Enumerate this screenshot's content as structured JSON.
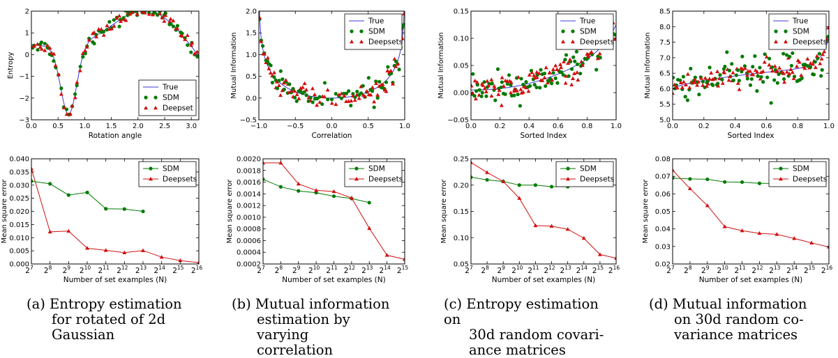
{
  "colors": {
    "true_line": "#3b3bd6",
    "sdm": "#007a00",
    "deepsets": "#d01010"
  },
  "chart_data": [
    {
      "type": "line",
      "id": "a_top",
      "xlabel": "Rotation angle",
      "ylabel": "Entropy",
      "xlim": [
        0,
        3.14159
      ],
      "ylim": [
        -3,
        2
      ],
      "xticks": [
        0,
        0.5,
        1,
        1.5,
        2,
        2.5,
        3
      ],
      "xticklabels": [
        "0.0",
        "0.5",
        "1.0",
        "1.5",
        "2.0",
        "2.5",
        "3.0"
      ],
      "yticks": [
        -3,
        -2,
        -1,
        0,
        1,
        2
      ],
      "yticklabels": [
        "−3",
        "−2",
        "−1",
        "0",
        "1",
        "2"
      ],
      "legend": {
        "position": "bottom-right",
        "entries": [
          "True",
          "SDM",
          "Deepset"
        ]
      },
      "true_fn": "entropy",
      "noise": 0.13,
      "n_points": 70
    },
    {
      "type": "line",
      "id": "b_top",
      "xlabel": "Correlation",
      "ylabel": "Mutual Information",
      "xlim": [
        -1,
        1
      ],
      "ylim": [
        -0.5,
        2.0
      ],
      "xticks": [
        -1,
        -0.5,
        0,
        0.5,
        1
      ],
      "xticklabels": [
        "−1.0",
        "−0.5",
        "0.0",
        "0.5",
        "1.0"
      ],
      "yticks": [
        -0.5,
        0,
        0.5,
        1,
        1.5,
        2
      ],
      "yticklabels": [
        "−0.5",
        "0.0",
        "0.5",
        "1.0",
        "1.5",
        "2.0"
      ],
      "legend": {
        "position": "top-right",
        "entries": [
          "True",
          "SDM",
          "Deepsets"
        ]
      },
      "true_fn": "mi_corr",
      "noise": 0.12,
      "n_points": 75
    },
    {
      "type": "line",
      "id": "c_top",
      "xlabel": "Sorted Index",
      "ylabel": "Mutual Information",
      "xlim": [
        0,
        1
      ],
      "ylim": [
        -0.05,
        0.15
      ],
      "xticks": [
        0,
        0.2,
        0.4,
        0.6,
        0.8,
        1
      ],
      "xticklabels": [
        "0.0",
        "0.2",
        "0.4",
        "0.6",
        "0.8",
        "1.0"
      ],
      "yticks": [
        -0.05,
        0,
        0.05,
        0.1,
        0.15
      ],
      "yticklabels": [
        "−0.05",
        "0.00",
        "0.05",
        "0.10",
        "0.15"
      ],
      "legend": {
        "position": "top-right",
        "entries": [
          "True",
          "SDM",
          "Deepsets"
        ]
      },
      "true_fn": "sorted_c",
      "noise": 0.013,
      "n_points": 90
    },
    {
      "type": "line",
      "id": "d_top",
      "xlabel": "Sorted Index",
      "ylabel": "Mutual Information",
      "xlim": [
        0,
        1
      ],
      "ylim": [
        5.0,
        8.5
      ],
      "xticks": [
        0,
        0.2,
        0.4,
        0.6,
        0.8,
        1
      ],
      "xticklabels": [
        "0.0",
        "0.2",
        "0.4",
        "0.6",
        "0.8",
        "1.0"
      ],
      "yticks": [
        5,
        5.5,
        6,
        6.5,
        7,
        7.5,
        8,
        8.5
      ],
      "yticklabels": [
        "5.0",
        "5.5",
        "6.0",
        "6.5",
        "7.0",
        "7.5",
        "8.0",
        "8.5"
      ],
      "legend": {
        "position": "top-right",
        "entries": [
          "True",
          "SDM",
          "Deepsets"
        ]
      },
      "true_fn": "sorted_d",
      "noise_sdm": 0.38,
      "noise_ds": 0.16,
      "n_points": 90
    },
    {
      "type": "line",
      "id": "a_bot",
      "xlabel": "Number of set examples (N)",
      "ylabel": "Mean square error",
      "x_exponents": [
        7,
        8,
        9,
        10,
        11,
        12,
        13,
        14,
        15,
        16
      ],
      "ylim": [
        0,
        0.04
      ],
      "yticks": [
        0,
        0.005,
        0.01,
        0.015,
        0.02,
        0.025,
        0.03,
        0.035,
        0.04
      ],
      "yticklabels": [
        "0.000",
        "0.005",
        "0.010",
        "0.015",
        "0.020",
        "0.025",
        "0.030",
        "0.035",
        "0.040"
      ],
      "legend": {
        "position": "top-right",
        "entries": [
          "SDM",
          "Deepsets"
        ]
      },
      "series": [
        {
          "name": "SDM",
          "x": [
            7,
            8,
            9,
            10,
            11,
            12,
            13
          ],
          "values": [
            0.0315,
            0.0305,
            0.0262,
            0.0272,
            0.021,
            0.0209,
            0.02
          ]
        },
        {
          "name": "Deepsets",
          "x": [
            7,
            8,
            9,
            10,
            11,
            12,
            13,
            14,
            15,
            16
          ],
          "values": [
            0.0362,
            0.0122,
            0.0125,
            0.006,
            0.0052,
            0.0043,
            0.0051,
            0.0026,
            0.0013,
            0.0005
          ]
        }
      ]
    },
    {
      "type": "line",
      "id": "b_bot",
      "xlabel": "Number of set examples (N)",
      "ylabel": "Mean square error",
      "x_exponents": [
        7,
        8,
        9,
        10,
        11,
        12,
        13,
        14,
        15
      ],
      "ylim": [
        0.0002,
        0.002
      ],
      "yticks": [
        0.0002,
        0.0004,
        0.0006,
        0.0008,
        0.001,
        0.0012,
        0.0014,
        0.0016,
        0.0018,
        0.002
      ],
      "yticklabels": [
        "0.0002",
        "0.0004",
        "0.0006",
        "0.0008",
        "0.0010",
        "0.0012",
        "0.0014",
        "0.0016",
        "0.0018",
        "0.0020"
      ],
      "legend": {
        "position": "top-right",
        "entries": [
          "SDM",
          "Deepsets"
        ]
      },
      "series": [
        {
          "name": "SDM",
          "x": [
            7,
            8,
            9,
            10,
            11,
            12,
            13
          ],
          "values": [
            0.00165,
            0.00152,
            0.00145,
            0.00142,
            0.00136,
            0.00132,
            0.00125
          ]
        },
        {
          "name": "Deepsets",
          "x": [
            7,
            8,
            9,
            10,
            11,
            12,
            13,
            14,
            15
          ],
          "values": [
            0.00193,
            0.00193,
            0.00157,
            0.00146,
            0.00144,
            0.00133,
            0.00081,
            0.00035,
            0.00028
          ]
        }
      ]
    },
    {
      "type": "line",
      "id": "c_bot",
      "xlabel": "Number of set examples (N)",
      "ylabel": "Mean square error",
      "x_exponents": [
        7,
        8,
        9,
        10,
        11,
        12,
        13,
        14,
        15,
        16
      ],
      "ylim": [
        0.05,
        0.25
      ],
      "yticks": [
        0.05,
        0.1,
        0.15,
        0.2,
        0.25
      ],
      "yticklabels": [
        "0.05",
        "0.10",
        "0.15",
        "0.20",
        "0.25"
      ],
      "legend": {
        "position": "top-right",
        "entries": [
          "SDM",
          "Deepsets"
        ]
      },
      "series": [
        {
          "name": "SDM",
          "x": [
            7,
            8,
            9,
            10,
            11,
            12,
            13
          ],
          "values": [
            0.215,
            0.21,
            0.207,
            0.2,
            0.2,
            0.197,
            0.197
          ]
        },
        {
          "name": "Deepsets",
          "x": [
            7,
            8,
            9,
            10,
            11,
            12,
            13,
            14,
            15,
            16
          ],
          "values": [
            0.243,
            0.224,
            0.207,
            0.175,
            0.123,
            0.122,
            0.116,
            0.099,
            0.068,
            0.061
          ]
        }
      ]
    },
    {
      "type": "line",
      "id": "d_bot",
      "xlabel": "Number of set examples (N)",
      "ylabel": "Mean square error",
      "x_exponents": [
        7,
        8,
        9,
        10,
        11,
        12,
        13,
        14,
        15,
        16
      ],
      "ylim": [
        0.02,
        0.08
      ],
      "yticks": [
        0.02,
        0.03,
        0.04,
        0.05,
        0.06,
        0.07,
        0.08
      ],
      "yticklabels": [
        "0.02",
        "0.03",
        "0.04",
        "0.05",
        "0.06",
        "0.07",
        "0.08"
      ],
      "legend": {
        "position": "top-right",
        "entries": [
          "SDM",
          "Deepsets"
        ]
      },
      "series": [
        {
          "name": "SDM",
          "x": [
            7,
            8,
            9,
            10,
            11,
            12,
            13
          ],
          "values": [
            0.069,
            0.0685,
            0.0683,
            0.0668,
            0.0667,
            0.066,
            0.066
          ]
        },
        {
          "name": "Deepsets",
          "x": [
            7,
            8,
            9,
            10,
            11,
            12,
            13,
            14,
            15,
            16
          ],
          "values": [
            0.0735,
            0.063,
            0.0533,
            0.0413,
            0.039,
            0.0375,
            0.0369,
            0.0346,
            0.032,
            0.0297
          ]
        }
      ]
    }
  ],
  "captions": [
    {
      "label": "(a)",
      "lines": [
        "Entropy    estimation",
        "for  rotated  of  2d",
        "Gaussian"
      ]
    },
    {
      "label": "(b)",
      "lines": [
        "Mutual    information",
        "estimation by varying",
        "correlation"
      ]
    },
    {
      "label": "(c)",
      "lines": [
        "Entropy estimation on",
        "30d random covari-",
        "ance matrices"
      ]
    },
    {
      "label": "(d)",
      "lines": [
        "Mutual    information",
        "on  30d  random  co-",
        "variance matrices"
      ]
    }
  ]
}
